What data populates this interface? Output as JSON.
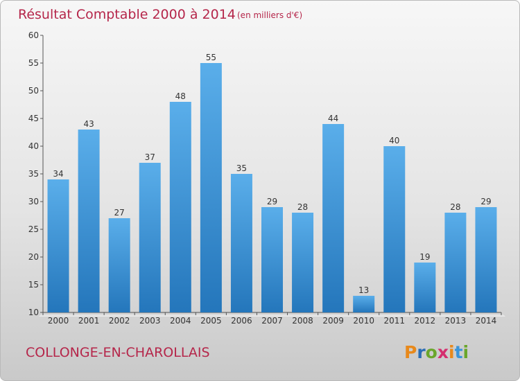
{
  "title": "Résultat Comptable 2000 à 2014",
  "unit": "(en milliers d'€)",
  "commune": "COLLONGE-EN-CHAROLLAIS",
  "brand": {
    "name": "Proxiti",
    "letters": [
      "P",
      "r",
      "o",
      "x",
      "i",
      "t",
      "i"
    ],
    "colors": [
      "#e8891b",
      "#2a6db5",
      "#6aa62a",
      "#d42e6e",
      "#e8891b",
      "#3a94d8",
      "#6aa62a"
    ]
  },
  "colors": {
    "bar_top": "#5aaeea",
    "bar_bottom": "#2476bb",
    "title": "#b5264a"
  },
  "chart_data": {
    "type": "bar",
    "title": "Résultat Comptable 2000 à 2014",
    "subtitle": "(en milliers d'€)",
    "categories": [
      "2000",
      "2001",
      "2002",
      "2003",
      "2004",
      "2005",
      "2006",
      "2007",
      "2008",
      "2009",
      "2010",
      "2011",
      "2012",
      "2013",
      "2014"
    ],
    "values": [
      34,
      43,
      27,
      37,
      48,
      55,
      35,
      29,
      28,
      44,
      13,
      40,
      19,
      28,
      29
    ],
    "ylim": [
      10,
      60
    ],
    "yticks": [
      10,
      15,
      20,
      25,
      30,
      35,
      40,
      45,
      50,
      55,
      60
    ],
    "grid": false,
    "data_labels": true
  }
}
